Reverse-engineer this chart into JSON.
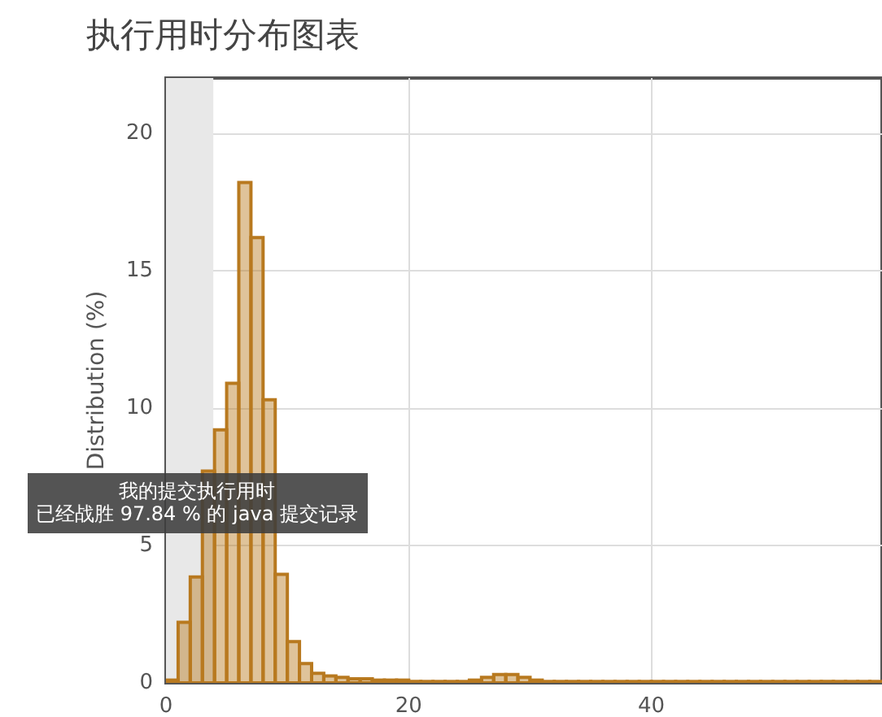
{
  "chart_data": {
    "type": "histogram",
    "title": "执行用时分布图表",
    "ylabel": "Distribution (%)",
    "bins": [
      0,
      1,
      2,
      3,
      4,
      5,
      6,
      7,
      8,
      9,
      10,
      11,
      12,
      13,
      14,
      15,
      16,
      17,
      18,
      19,
      20,
      21,
      22,
      23,
      24,
      25,
      26,
      27,
      28,
      29,
      30,
      31,
      32,
      33,
      34,
      35,
      36,
      37,
      38,
      39,
      40,
      41,
      42,
      43,
      44,
      45,
      46,
      47,
      48,
      49,
      50,
      51,
      52,
      53,
      54,
      55,
      56,
      57,
      58,
      59
    ],
    "values": [
      0.1,
      2.2,
      3.85,
      7.7,
      9.2,
      10.9,
      18.2,
      16.2,
      10.3,
      3.95,
      1.5,
      0.7,
      0.35,
      0.25,
      0.2,
      0.15,
      0.15,
      0.1,
      0.1,
      0.1,
      0.05,
      0.05,
      0.05,
      0.05,
      0.05,
      0.1,
      0.2,
      0.3,
      0.3,
      0.2,
      0.1,
      0.05,
      0.05,
      0.05,
      0.05,
      0.05,
      0.05,
      0.05,
      0.05,
      0.05,
      0.05,
      0.05,
      0.05,
      0.05,
      0.05,
      0.05,
      0.05,
      0.05,
      0.05,
      0.05,
      0.05,
      0.05,
      0.05,
      0.05,
      0.05,
      0.05,
      0.05,
      0.05,
      0.05
    ],
    "color": "#b8791f",
    "xlim": [
      0,
      59
    ],
    "xticks": [
      0,
      20,
      40
    ],
    "ylim": [
      0,
      22
    ],
    "yticks": [
      0,
      5,
      10,
      15,
      20
    ],
    "grid": true,
    "bands": [
      {
        "axis": "x",
        "from": 0,
        "to": 3.9,
        "color": "#e8e8e8"
      }
    ],
    "annotations": [
      "我的提交执行用时",
      "已经战胜 97.84 % 的 java 提交记录"
    ]
  }
}
